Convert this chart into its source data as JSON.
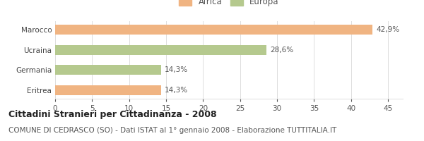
{
  "categories": [
    "Eritrea",
    "Germania",
    "Ucraina",
    "Marocco"
  ],
  "values": [
    14.3,
    14.3,
    28.6,
    42.9
  ],
  "colors": [
    "#f0b482",
    "#b5c98e",
    "#b5c98e",
    "#f0b482"
  ],
  "bar_labels": [
    "14,3%",
    "14,3%",
    "28,6%",
    "42,9%"
  ],
  "xlim": [
    0,
    47
  ],
  "xticks": [
    0,
    5,
    10,
    15,
    20,
    25,
    30,
    35,
    40,
    45
  ],
  "legend_items": [
    {
      "label": "Africa",
      "color": "#f0b482"
    },
    {
      "label": "Europa",
      "color": "#b5c98e"
    }
  ],
  "title": "Cittadini Stranieri per Cittadinanza - 2008",
  "subtitle": "COMUNE DI CEDRASCO (SO) - Dati ISTAT al 1° gennaio 2008 - Elaborazione TUTTITALIA.IT",
  "background_color": "#ffffff",
  "bar_height": 0.5,
  "title_fontsize": 9,
  "subtitle_fontsize": 7.5,
  "label_fontsize": 7.5,
  "tick_fontsize": 7.5,
  "legend_fontsize": 8.5,
  "gridcolor": "#dddddd"
}
